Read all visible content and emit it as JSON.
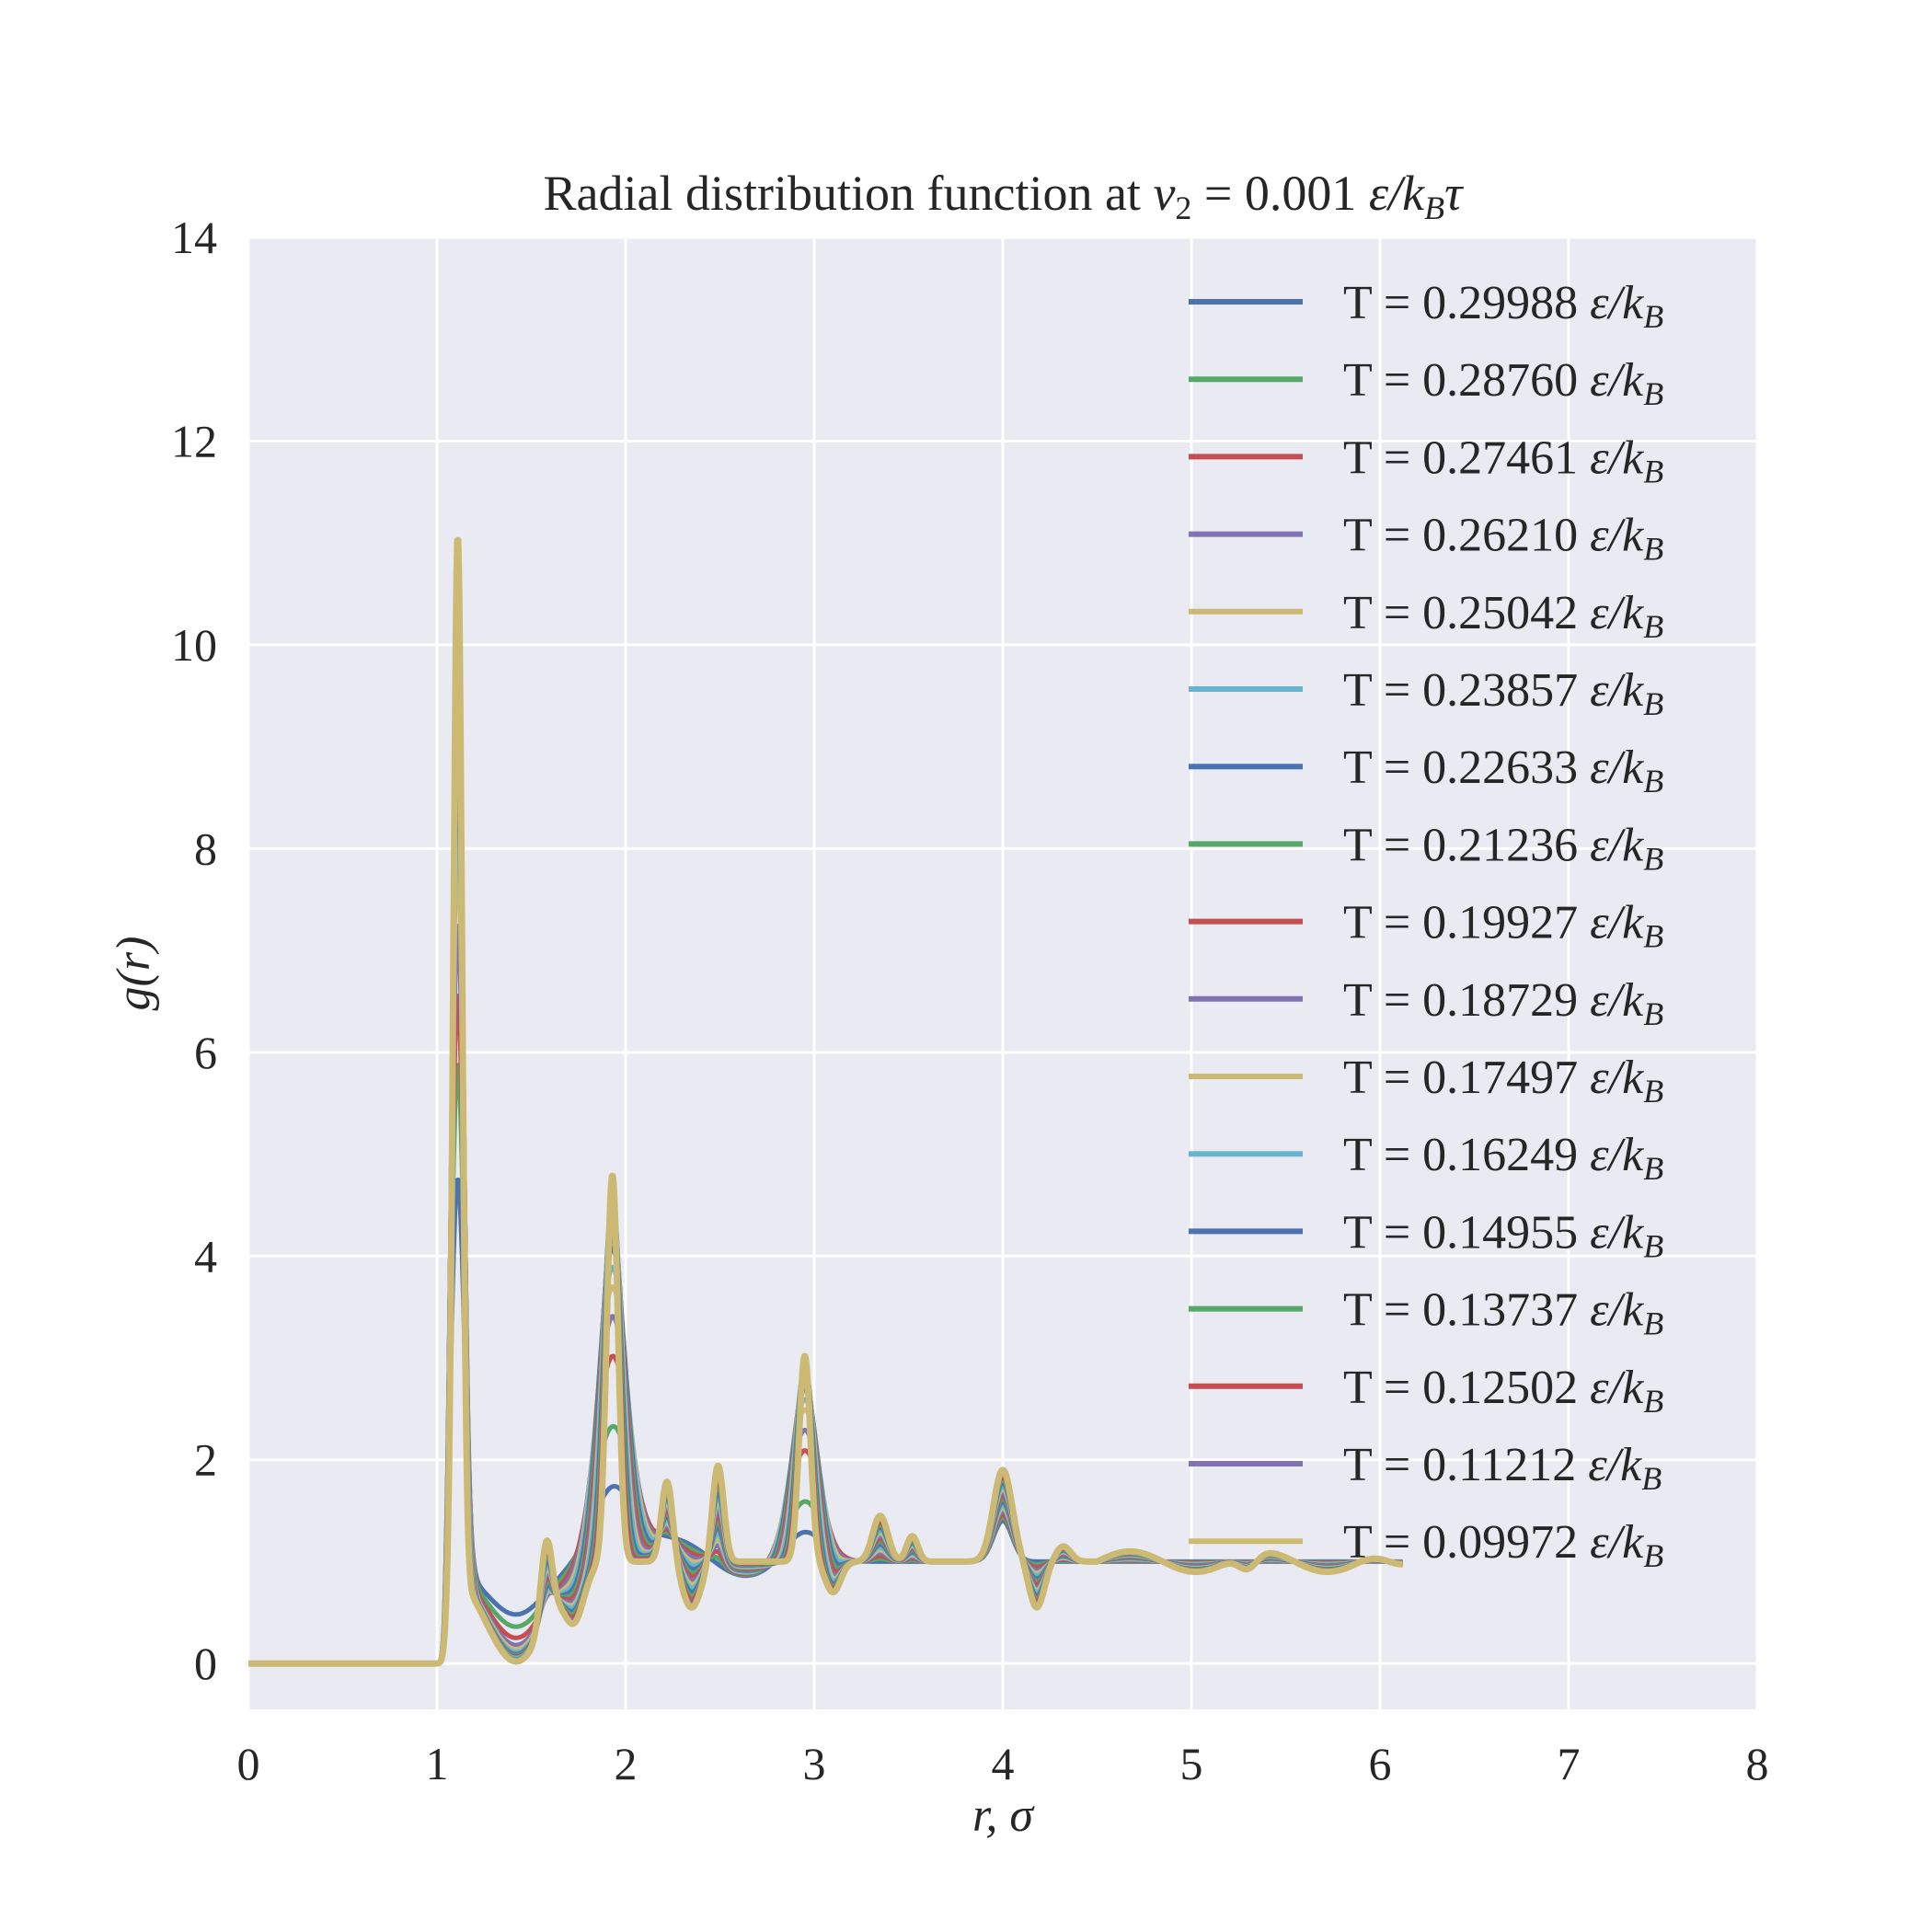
{
  "chart_data": {
    "type": "line",
    "title_main": "Radial distribution function at ",
    "title_var": "v",
    "title_sub": "2",
    "title_eq": " = 0.001 ",
    "title_unit": "ε/k",
    "title_unit_sub": "B",
    "title_tail": "τ",
    "xlabel": "r, σ",
    "ylabel": "g(r)",
    "xlim": [
      0,
      8
    ],
    "ylim": [
      -0.45,
      14
    ],
    "xticks": [
      "0",
      "1",
      "2",
      "3",
      "4",
      "5",
      "6",
      "7",
      "8"
    ],
    "yticks": [
      "0",
      "2",
      "4",
      "6",
      "8",
      "10",
      "12",
      "14"
    ],
    "grid": true,
    "legend_position": "upper-right",
    "background_color": "#eaeaf2",
    "legend_unit": "ε/k",
    "legend_unit_sub": "B",
    "series": [
      {
        "name": "T = 0.29988",
        "color": "#4c72b0",
        "peak1": 4.85,
        "peak2": 1.6,
        "peak3": 1.3,
        "min1": 0.48
      },
      {
        "name": "T = 0.28760",
        "color": "#55a868",
        "peak1": 6.0,
        "peak2": 2.2,
        "peak3": 1.6,
        "min1": 0.36
      },
      {
        "name": "T = 0.27461",
        "color": "#c44e52",
        "peak1": 6.7,
        "peak2": 2.9,
        "peak3": 2.1,
        "min1": 0.25
      },
      {
        "name": "T = 0.26210",
        "color": "#8172b2",
        "peak1": 7.4,
        "peak2": 3.3,
        "peak3": 2.3,
        "min1": 0.18
      },
      {
        "name": "T = 0.25042",
        "color": "#ccb974",
        "peak1": 8.1,
        "peak2": 3.6,
        "peak3": 2.5,
        "min1": 0.14
      },
      {
        "name": "T = 0.23857",
        "color": "#64b5cd",
        "peak1": 8.6,
        "peak2": 3.8,
        "peak3": 2.6,
        "min1": 0.11
      },
      {
        "name": "T = 0.22633",
        "color": "#4c72b0",
        "peak1": 9.0,
        "peak2": 4.0,
        "peak3": 2.7,
        "min1": 0.09
      },
      {
        "name": "T = 0.21236",
        "color": "#55a868",
        "peak1": 9.4,
        "peak2": 4.1,
        "peak3": 2.75,
        "min1": 0.08
      },
      {
        "name": "T = 0.19927",
        "color": "#c44e52",
        "peak1": 9.8,
        "peak2": 4.25,
        "peak3": 2.8,
        "min1": 0.07
      },
      {
        "name": "T = 0.18729",
        "color": "#8172b2",
        "peak1": 10.1,
        "peak2": 4.35,
        "peak3": 2.85,
        "min1": 0.06
      },
      {
        "name": "T = 0.17497",
        "color": "#ccb974",
        "peak1": 10.4,
        "peak2": 4.45,
        "peak3": 2.9,
        "min1": 0.05
      },
      {
        "name": "T = 0.16249",
        "color": "#64b5cd",
        "peak1": 10.6,
        "peak2": 4.55,
        "peak3": 2.92,
        "min1": 0.05
      },
      {
        "name": "T = 0.14955",
        "color": "#4c72b0",
        "peak1": 10.8,
        "peak2": 4.6,
        "peak3": 2.95,
        "min1": 0.04
      },
      {
        "name": "T = 0.13737",
        "color": "#55a868",
        "peak1": 10.95,
        "peak2": 4.65,
        "peak3": 2.97,
        "min1": 0.04
      },
      {
        "name": "T = 0.12502",
        "color": "#c44e52",
        "peak1": 11.05,
        "peak2": 4.7,
        "peak3": 2.98,
        "min1": 0.03
      },
      {
        "name": "T = 0.11212",
        "color": "#8172b2",
        "peak1": 11.15,
        "peak2": 4.75,
        "peak3": 3.0,
        "min1": 0.03
      },
      {
        "name": "T = 0.09972",
        "color": "#ccb974",
        "peak1": 11.25,
        "peak2": 4.8,
        "peak3": 3.02,
        "min1": 0.02
      }
    ]
  }
}
